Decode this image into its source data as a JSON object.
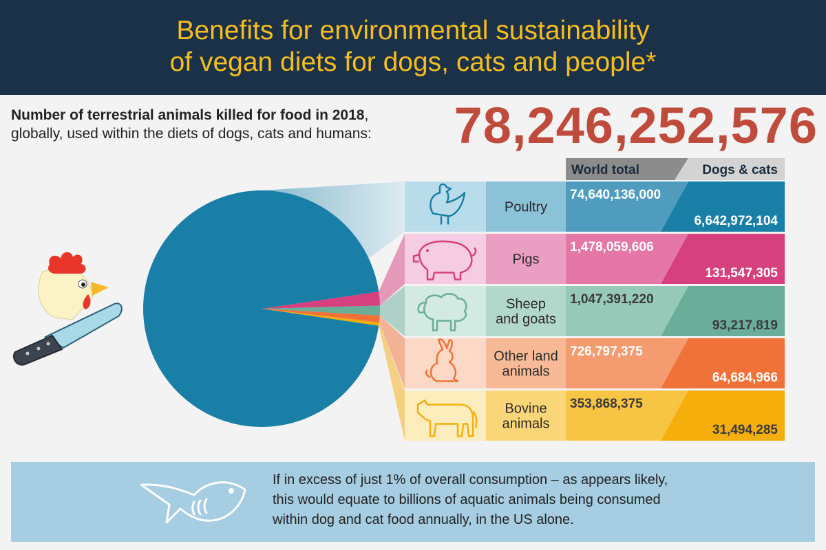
{
  "header": {
    "title_line1": "Benefits for environmental sustainability",
    "title_line2": "of vegan diets for dogs, cats and people*"
  },
  "summary": {
    "bold_text": "Number of terrestrial animals killed for food in 2018",
    "rest_line1": ",",
    "line2": "globally, used within the diets of dogs, cats and humans:",
    "total": "78,246,252,576"
  },
  "chart_data": {
    "type": "pie",
    "columns": [
      "World total",
      "Dogs & cats"
    ],
    "categories": [
      "Poultry",
      "Pigs",
      "Sheep and goats",
      "Other land animals",
      "Bovine animals"
    ],
    "series": [
      {
        "name": "World total",
        "values": [
          74640136000,
          1478059606,
          1047391220,
          726797375,
          353868375
        ]
      },
      {
        "name": "Dogs & cats",
        "values": [
          6642972104,
          131547305,
          93217819,
          64684966,
          31494285
        ]
      }
    ],
    "rows": [
      {
        "label_lines": [
          "Poultry"
        ],
        "world": "74,640,136,000",
        "dogs_cats": "6,642,972,104",
        "icon": "chicken-icon",
        "color": "#1a7fa6",
        "light": "#b8dcea",
        "mid": "#8cc2d8",
        "world_color": "#4f9cbf",
        "text_color": "#ffffff"
      },
      {
        "label_lines": [
          "Pigs"
        ],
        "world": "1,478,059,606",
        "dogs_cats": "131,547,305",
        "icon": "pig-icon",
        "color": "#d6407e",
        "light": "#f6cde0",
        "mid": "#ea9fc2",
        "world_color": "#e577a6",
        "text_color": "#ffffff"
      },
      {
        "label_lines": [
          "Sheep",
          "and goats"
        ],
        "world": "1,047,391,220",
        "dogs_cats": "93,217,819",
        "icon": "sheep-icon",
        "color": "#6aae9a",
        "light": "#d3eae2",
        "mid": "#b2d8cb",
        "world_color": "#97c9b8",
        "text_color": "#3a3a3a"
      },
      {
        "label_lines": [
          "Other land",
          "animals"
        ],
        "world": "726,797,375",
        "dogs_cats": "64,684,966",
        "icon": "rabbit-icon",
        "color": "#f17238",
        "light": "#fcd9c6",
        "mid": "#f8b996",
        "world_color": "#f59b70",
        "text_color": "#ffffff"
      },
      {
        "label_lines": [
          "Bovine",
          "animals"
        ],
        "world": "353,868,375",
        "dogs_cats": "31,494,285",
        "icon": "cow-icon",
        "color": "#f6ae0d",
        "light": "#fdedbd",
        "mid": "#fad678",
        "world_color": "#f8c444",
        "text_color": "#3a3a3a"
      }
    ]
  },
  "footer": {
    "line1": "If in excess of just 1% of overall consumption – as appears likely,",
    "line2": "this would equate to billions of aquatic animals being consumed",
    "line3": "within dog and cat food annually, in the US alone."
  }
}
